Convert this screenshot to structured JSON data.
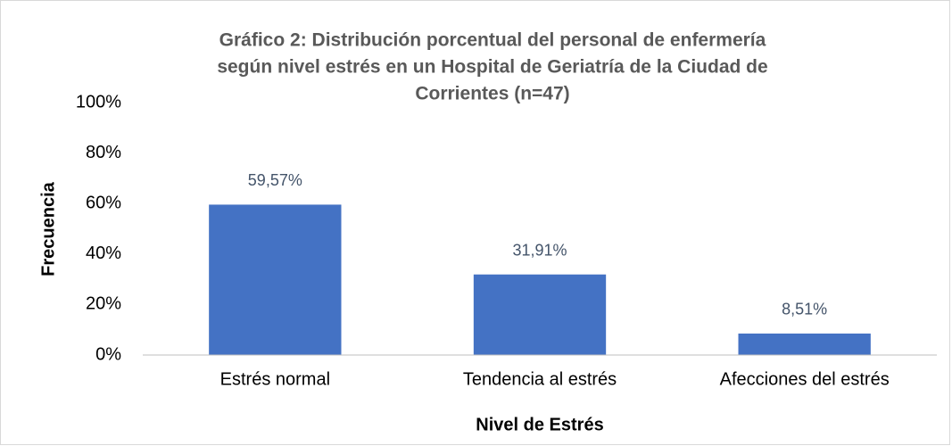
{
  "chart_data": {
    "type": "bar",
    "title": [
      "Gráfico 2: Distribución porcentual del personal de enfermería",
      "según nivel estrés en un Hospital de Geriatría de la Ciudad de",
      "Corrientes (n=47)"
    ],
    "x_label": "Nivel de Estrés",
    "y_label": "Frecuencia",
    "categories": [
      "Estrés normal",
      "Tendencia al estrés",
      "Afecciones del estrés"
    ],
    "values": [
      59.57,
      31.91,
      8.51
    ],
    "value_labels": [
      "59,57%",
      "31,91%",
      "8,51%"
    ],
    "color": "#4472c4",
    "ylim": [
      0,
      100
    ],
    "yticks": [
      {
        "value": 0,
        "label": "0%"
      },
      {
        "value": 20,
        "label": "20%"
      },
      {
        "value": 40,
        "label": "40%"
      },
      {
        "value": 60,
        "label": "60%"
      },
      {
        "value": 80,
        "label": "80%"
      },
      {
        "value": 100,
        "label": "100%"
      }
    ],
    "grid": false
  }
}
